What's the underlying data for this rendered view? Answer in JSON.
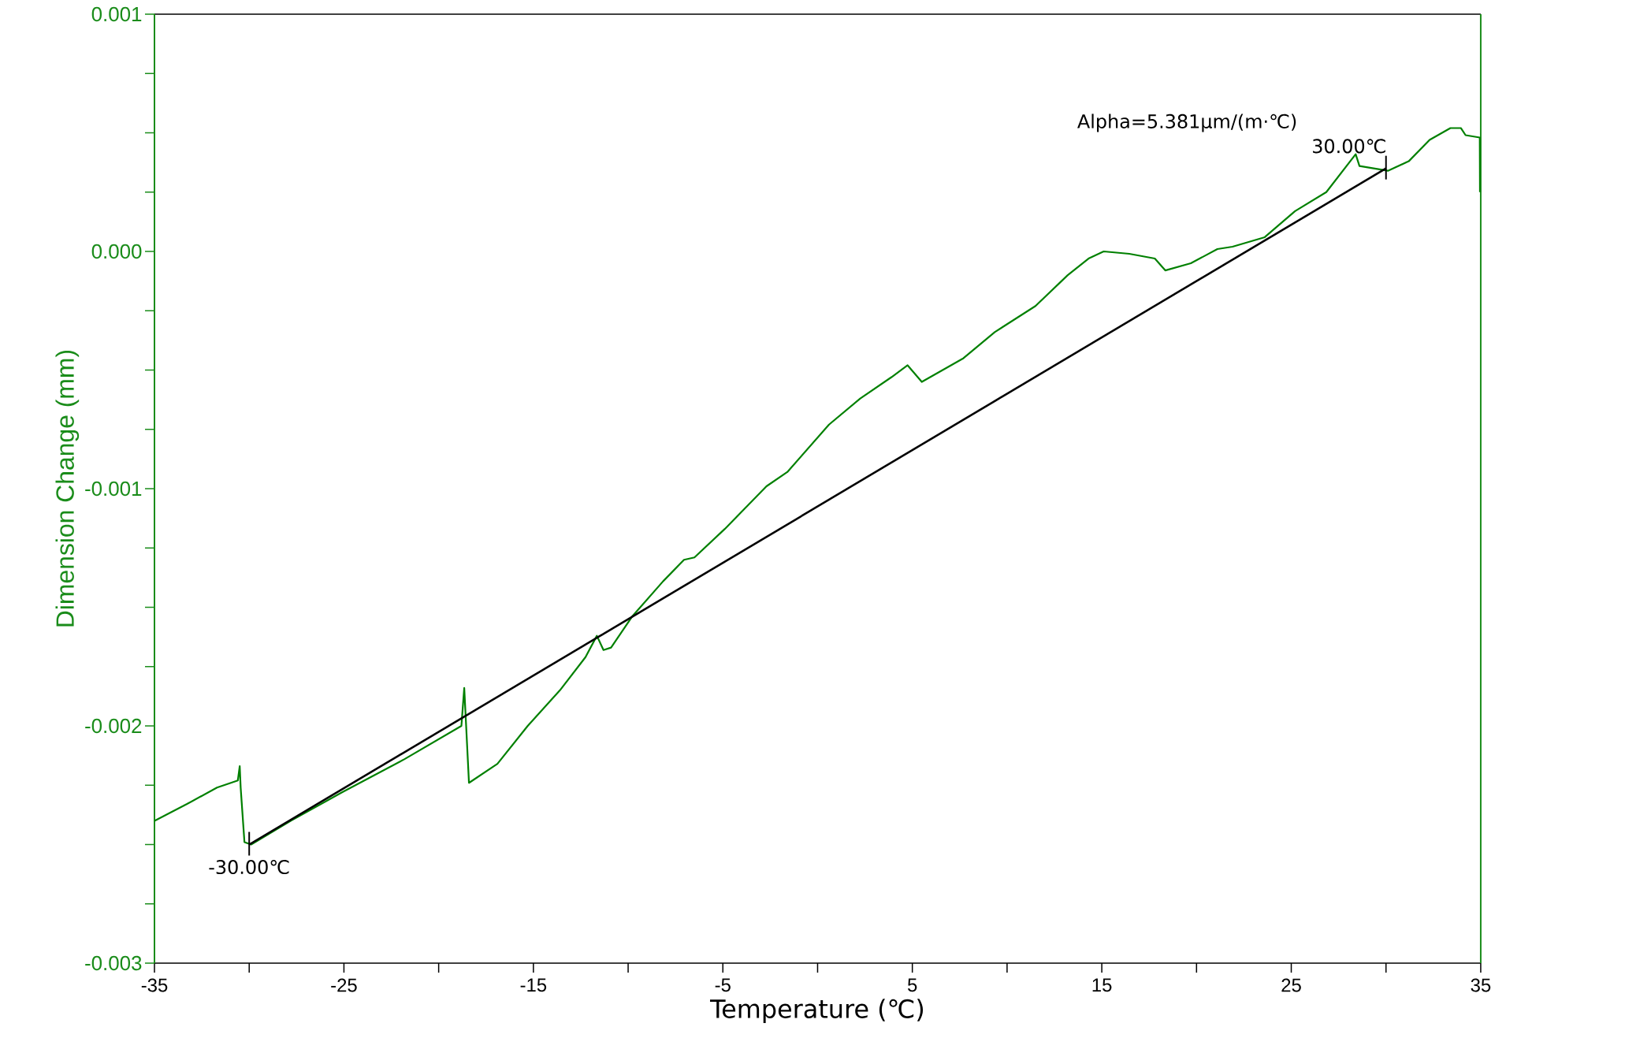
{
  "chart_data": {
    "type": "line",
    "xlabel": "Temperature (℃)",
    "ylabel": "Dimension Change (mm)",
    "series": [
      {
        "color": "#008000",
        "x": [
          -35,
          -33.3,
          -31.7,
          -30.6,
          -30.5,
          -30.45,
          -30.25,
          -29.9,
          -27.8,
          -25.1,
          -21.8,
          -18.8,
          -18.65,
          -18.55,
          -18.4,
          -16.9,
          -15.3,
          -13.6,
          -12.25,
          -11.65,
          -11.3,
          -10.9,
          -9.8,
          -8.15,
          -7.05,
          -6.5,
          -4.9,
          -2.7,
          -1.6,
          0.6,
          2.25,
          3.9,
          4.75,
          5.5,
          7.7,
          9.35,
          11.5,
          13.2,
          14.3,
          15.1,
          16.45,
          17.8,
          18.35,
          19.7,
          21.1,
          21.9,
          23.6,
          25.2,
          26.85,
          28.4,
          28.6,
          30.1,
          31.2,
          32.3,
          33.4,
          33.95,
          34.2,
          34.95,
          34.96
        ],
        "values": [
          -0.0024,
          -0.00233,
          -0.00226,
          -0.00223,
          -0.00217,
          -0.00226,
          -0.00249,
          -0.0025,
          -0.0024,
          -0.00228,
          -0.00214,
          -0.002,
          -0.00184,
          -0.002,
          -0.00224,
          -0.00216,
          -0.002,
          -0.00185,
          -0.00171,
          -0.00162,
          -0.00168,
          -0.00167,
          -0.00154,
          -0.00139,
          -0.0013,
          -0.00129,
          -0.00117,
          -0.00099,
          -0.00093,
          -0.00073,
          -0.00062,
          -0.00053,
          -0.00048,
          -0.00055,
          -0.00045,
          -0.00034,
          -0.00023,
          -0.0001,
          -3e-05,
          0.0,
          -1e-05,
          -3e-05,
          -8e-05,
          -5e-05,
          1e-05,
          2e-05,
          6e-05,
          0.00017,
          0.00025,
          0.00041,
          0.00036,
          0.00034,
          0.00038,
          0.00047,
          0.00052,
          0.00052,
          0.00049,
          0.00048,
          0.00025
        ]
      },
      {
        "type": "line",
        "color": "#000000",
        "x": [
          -30,
          30
        ],
        "values": [
          -0.0025,
          0.00035
        ]
      }
    ],
    "xlim": [
      -35,
      35
    ],
    "xticks": [
      -35,
      {
        "value": -30,
        "label": null
      },
      -25,
      {
        "value": -20,
        "label": null
      },
      -15,
      {
        "value": -10,
        "label": null
      },
      -5,
      {
        "value": 0,
        "label": null
      },
      5,
      {
        "value": 10,
        "label": null
      },
      15,
      {
        "value": 20,
        "label": null
      },
      25,
      {
        "value": 30,
        "label": null
      },
      35
    ],
    "ylim": [
      -0.003,
      0.001
    ],
    "yticks": [
      -0.003,
      {
        "value": -0.00275,
        "label": null
      },
      {
        "value": -0.0025,
        "label": null
      },
      {
        "value": -0.00225,
        "label": null
      },
      -0.002,
      {
        "value": -0.00175,
        "label": null
      },
      {
        "value": -0.0015,
        "label": null
      },
      {
        "value": -0.00125,
        "label": null
      },
      -0.001,
      {
        "value": -0.00075,
        "label": null
      },
      {
        "value": -0.0005,
        "label": null
      },
      {
        "value": -0.00025,
        "label": null
      },
      {
        "value": 0,
        "label": "0.000"
      },
      {
        "value": 0.00025,
        "label": null
      },
      {
        "value": 0.0005,
        "label": null
      },
      {
        "value": 0.00075,
        "label": null
      },
      0.001
    ],
    "annotations": [
      {
        "text": "-30.00℃",
        "x": -30,
        "y": -0.0025
      },
      {
        "text": "30.00℃",
        "x": 30,
        "y": 0.00035
      },
      "Alpha=5.381μm/(m·℃)"
    ]
  }
}
